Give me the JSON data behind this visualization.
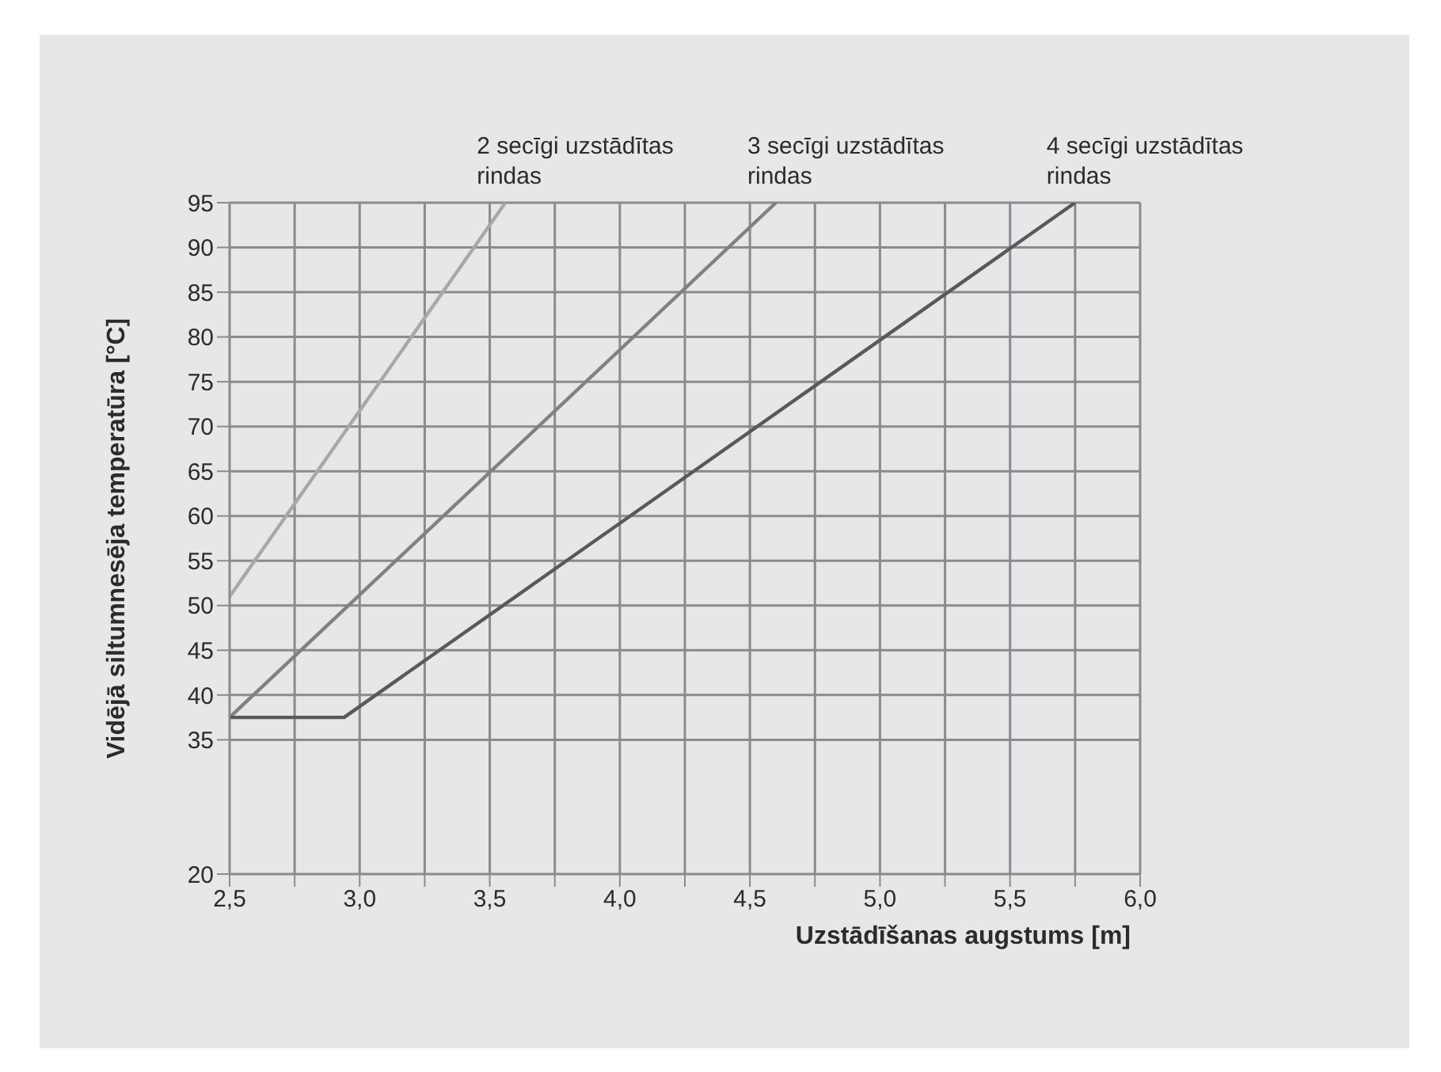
{
  "chart_data": {
    "type": "line",
    "xlabel": "Uzstādīšanas augstums [m]",
    "ylabel": "Vidējā siltumnesēja temperatūra [°C]",
    "xlim": [
      2.5,
      6.0
    ],
    "xticks": [
      {
        "value": 2.5,
        "label": "2,5"
      },
      {
        "value": 2.75,
        "label": null
      },
      {
        "value": 3.0,
        "label": "3,0"
      },
      {
        "value": 3.25,
        "label": null
      },
      {
        "value": 3.5,
        "label": "3,5"
      },
      {
        "value": 3.75,
        "label": null
      },
      {
        "value": 4.0,
        "label": "4,0"
      },
      {
        "value": 4.25,
        "label": null
      },
      {
        "value": 4.5,
        "label": "4,5"
      },
      {
        "value": 4.75,
        "label": null
      },
      {
        "value": 5.0,
        "label": "5,0"
      },
      {
        "value": 5.25,
        "label": null
      },
      {
        "value": 5.5,
        "label": "5,5"
      },
      {
        "value": 5.75,
        "label": null
      },
      {
        "value": 6.0,
        "label": "6,0"
      }
    ],
    "ylim": [
      20,
      95
    ],
    "yticks": [
      20,
      35,
      40,
      45,
      50,
      55,
      60,
      65,
      70,
      75,
      80,
      85,
      90,
      95
    ],
    "grid": true,
    "marker": "none",
    "line_style": "solid",
    "series": [
      {
        "name": "2 secīgi uzstādītas rindas",
        "color": "#a7a8aa",
        "x": [
          2.5,
          3.56
        ],
        "values": [
          51,
          95
        ]
      },
      {
        "name": "3 secīgi uzstādītas rindas",
        "color": "#808183",
        "x": [
          2.5,
          4.6
        ],
        "values": [
          37.5,
          95
        ]
      },
      {
        "name": "4 secīgi uzstādītas rindas",
        "color": "#58595b",
        "x": [
          2.5,
          2.94,
          5.75
        ],
        "values": [
          37.5,
          37.5,
          95
        ]
      }
    ]
  }
}
